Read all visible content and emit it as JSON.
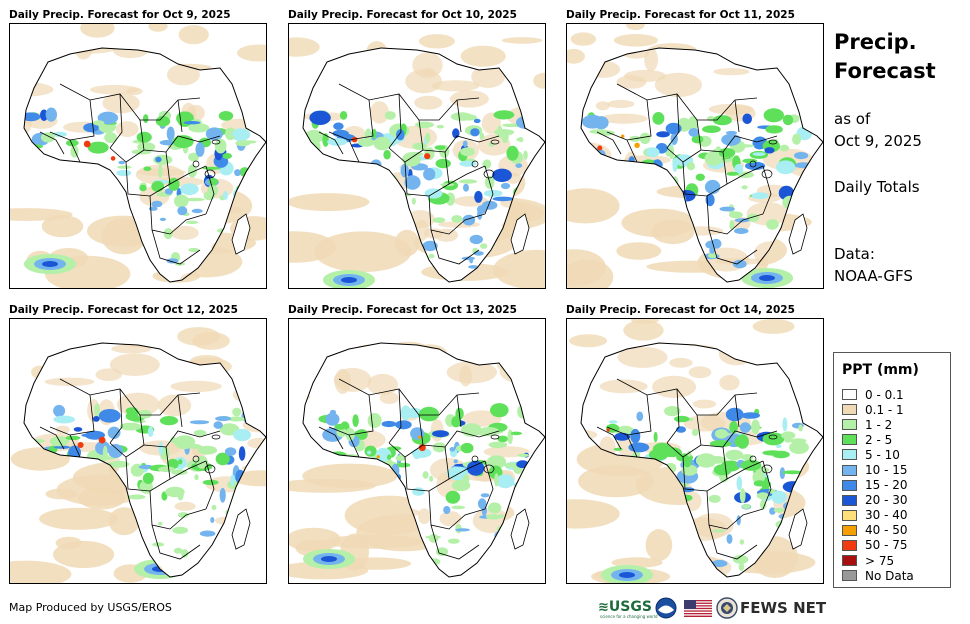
{
  "panels": [
    {
      "title": "Daily Precip. Forecast for Oct 9, 2025"
    },
    {
      "title": "Daily Precip. Forecast for Oct 10, 2025"
    },
    {
      "title": "Daily Precip. Forecast for Oct 11, 2025"
    },
    {
      "title": "Daily Precip. Forecast for Oct 12, 2025"
    },
    {
      "title": "Daily Precip. Forecast for Oct 13, 2025"
    },
    {
      "title": "Daily Precip. Forecast for Oct 14, 2025"
    }
  ],
  "side": {
    "title_line1": "Precip.",
    "title_line2": "Forecast",
    "asof_line1": "as of",
    "asof_line2": "Oct 9, 2025",
    "daily_totals": "Daily Totals",
    "data_line1": "Data:",
    "data_line2": "NOAA-GFS"
  },
  "legend": {
    "title": "PPT (mm)",
    "items": [
      {
        "label": "0 - 0.1",
        "color": "#ffffff"
      },
      {
        "label": "0.1 - 1",
        "color": "#f0d9b5"
      },
      {
        "label": "1 - 2",
        "color": "#b4f0a8"
      },
      {
        "label": "2 - 5",
        "color": "#5fe05a"
      },
      {
        "label": "5 - 10",
        "color": "#a8eef2"
      },
      {
        "label": "10 - 15",
        "color": "#74b4ee"
      },
      {
        "label": "15 - 20",
        "color": "#3f8ae8"
      },
      {
        "label": "20 - 30",
        "color": "#1a56d6"
      },
      {
        "label": "30 - 40",
        "color": "#fde07a"
      },
      {
        "label": "40 - 50",
        "color": "#f5a000"
      },
      {
        "label": "50 - 75",
        "color": "#f03a10"
      },
      {
        "label": "> 75",
        "color": "#a81010"
      },
      {
        "label": "No Data",
        "color": "#999999"
      }
    ]
  },
  "footer": {
    "credit": "Map Produced by USGS/EROS",
    "usgs_logo": "USGS",
    "usgs_tagline": "science for a changing world",
    "fews_net": "FEWS NET"
  },
  "icons": [
    "usgs-logo",
    "noaa-logo-icon",
    "us-flag-icon",
    "state-department-seal-icon"
  ]
}
